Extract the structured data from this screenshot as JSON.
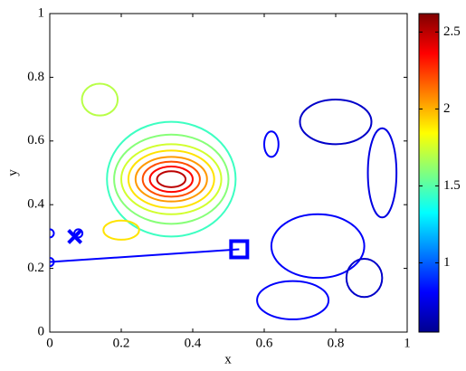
{
  "chart_data": {
    "type": "contour",
    "xlabel": "x",
    "ylabel": "y",
    "xlim": [
      0,
      1
    ],
    "ylim": [
      0,
      1
    ],
    "xticks": [
      0,
      0.2,
      0.4,
      0.6,
      0.8,
      1
    ],
    "yticks": [
      0,
      0.2,
      0.4,
      0.6,
      0.8,
      1
    ],
    "colorbar": {
      "colormap": "jet",
      "clim": [
        0.55,
        2.62
      ],
      "ticks": [
        1,
        1.5,
        2,
        2.5
      ]
    },
    "contours": [
      {
        "level": 1.45,
        "x": 0.34,
        "y": 0.48,
        "rx": 0.18,
        "ry": 0.18
      },
      {
        "level": 1.6,
        "x": 0.34,
        "y": 0.48,
        "rx": 0.16,
        "ry": 0.14
      },
      {
        "level": 1.75,
        "x": 0.34,
        "y": 0.48,
        "rx": 0.14,
        "ry": 0.11
      },
      {
        "level": 1.9,
        "x": 0.34,
        "y": 0.48,
        "rx": 0.12,
        "ry": 0.09
      },
      {
        "level": 2.05,
        "x": 0.34,
        "y": 0.48,
        "rx": 0.1,
        "ry": 0.07
      },
      {
        "level": 2.2,
        "x": 0.34,
        "y": 0.48,
        "rx": 0.08,
        "ry": 0.055
      },
      {
        "level": 2.35,
        "x": 0.34,
        "y": 0.48,
        "rx": 0.06,
        "ry": 0.04
      },
      {
        "level": 2.5,
        "x": 0.34,
        "y": 0.48,
        "rx": 0.04,
        "ry": 0.025
      },
      {
        "level": 1.7,
        "x": 0.14,
        "y": 0.73,
        "rx": 0.05,
        "ry": 0.05
      },
      {
        "level": 1.9,
        "x": 0.2,
        "y": 0.32,
        "rx": 0.05,
        "ry": 0.03
      },
      {
        "level": 0.7,
        "x": 0.8,
        "y": 0.66,
        "rx": 0.1,
        "ry": 0.07
      },
      {
        "level": 0.75,
        "x": 0.93,
        "y": 0.5,
        "rx": 0.04,
        "ry": 0.14
      },
      {
        "level": 0.8,
        "x": 0.62,
        "y": 0.59,
        "rx": 0.02,
        "ry": 0.04
      },
      {
        "level": 0.8,
        "x": 0.75,
        "y": 0.27,
        "rx": 0.13,
        "ry": 0.1
      },
      {
        "level": 0.8,
        "x": 0.68,
        "y": 0.1,
        "rx": 0.1,
        "ry": 0.06
      },
      {
        "level": 0.7,
        "x": 0.88,
        "y": 0.17,
        "rx": 0.05,
        "ry": 0.06
      }
    ],
    "path": {
      "color": "#0000ff",
      "x": [
        0,
        0.53
      ],
      "y": [
        0.22,
        0.26
      ]
    },
    "circles": {
      "color": "#0000ff",
      "x": [
        0,
        0.08,
        0
      ],
      "y": [
        0.31,
        0.31,
        0.22
      ]
    },
    "crosses": {
      "color": "#0000ff",
      "x": [
        0.07
      ],
      "y": [
        0.3
      ]
    },
    "squares": {
      "color": "#0000ff",
      "x": [
        0.53
      ],
      "y": [
        0.26
      ]
    }
  }
}
